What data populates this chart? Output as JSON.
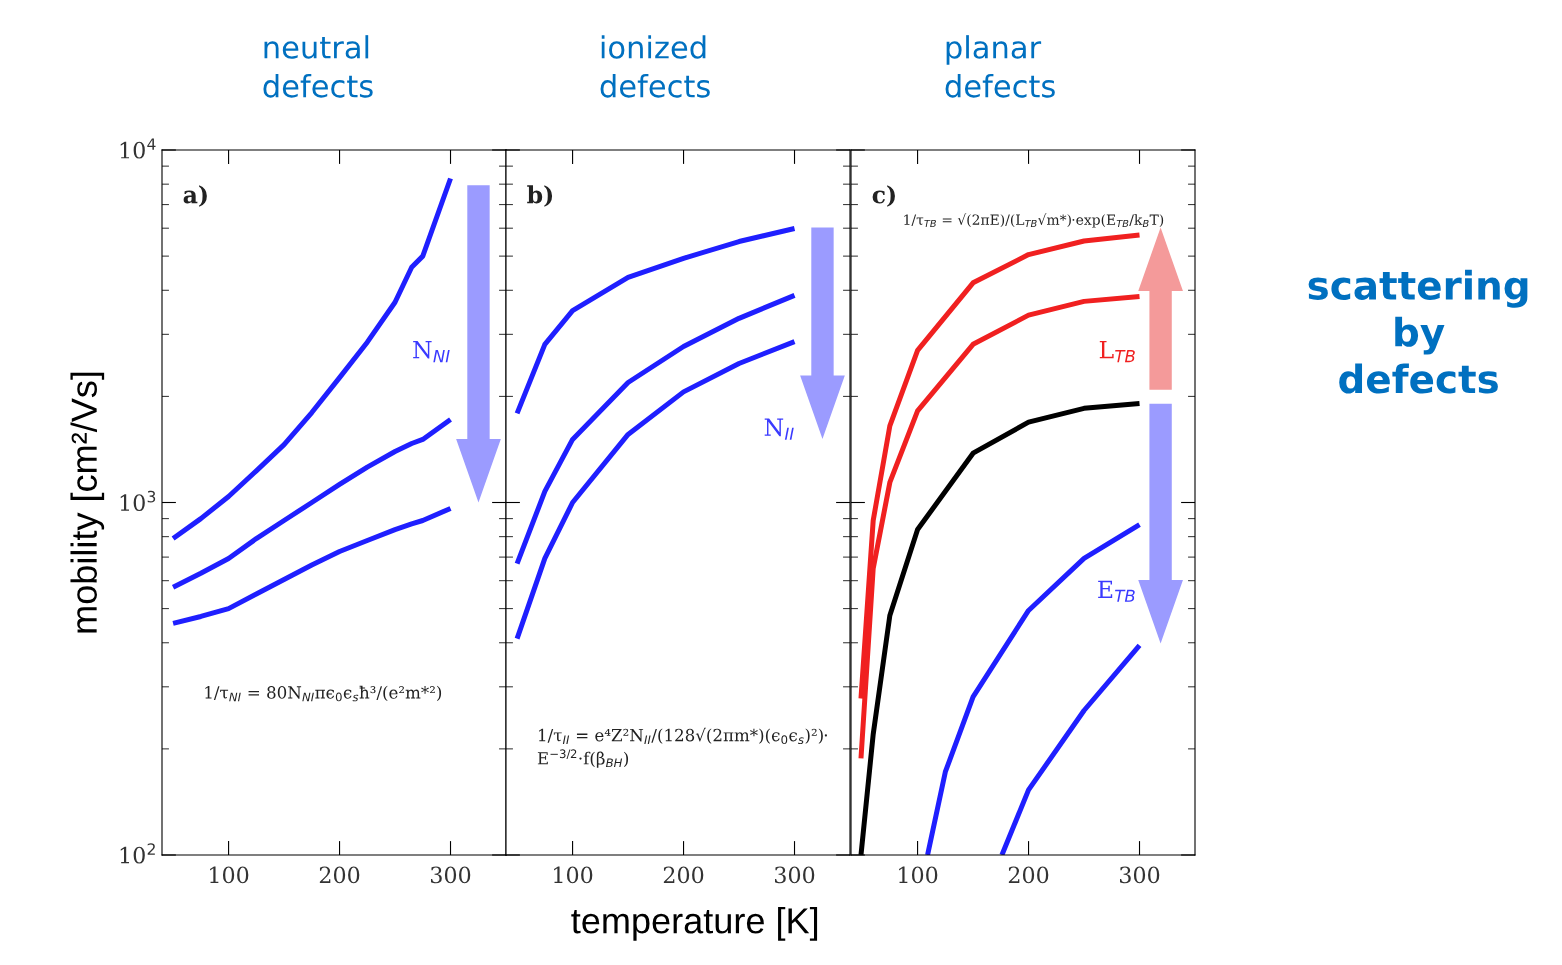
{
  "chart_data": [
    {
      "type": "line",
      "title": "neutral\ndefects",
      "ylabel": "mobility [cm²/Vs]",
      "log": "y",
      "grid": false,
      "legend": false,
      "xlim": [
        40,
        350
      ],
      "xticks": [
        100,
        200,
        300
      ],
      "ylim": [
        100,
        10000
      ],
      "yticks": [
        {
          "value": 100,
          "label": "10$^{2}$"
        },
        {
          "value": 1000,
          "label": "10$^{3}$"
        },
        {
          "value": 10000,
          "label": "10$^{4}$"
        }
      ],
      "x": [
        50,
        75,
        100,
        125,
        150,
        175,
        200,
        225,
        250,
        265,
        275,
        300
      ],
      "series": [
        {
          "color": "#1f1fff",
          "values": [
            790,
            900,
            1040,
            1230,
            1460,
            1800,
            2260,
            2850,
            3700,
            4650,
            5000,
            8300
          ]
        },
        {
          "color": "#1f1fff",
          "values": [
            575,
            630,
            694,
            790,
            889,
            1000,
            1125,
            1260,
            1395,
            1470,
            1510,
            1720
          ]
        },
        {
          "color": "#1f1fff",
          "values": [
            454,
            475,
            500,
            550,
            605,
            665,
            726,
            780,
            838,
            870,
            889,
            962
          ]
        }
      ],
      "annotations": [
        "a)",
        "N$_{NI}$",
        "1/τ$_{NI}$ = 80N$_{NI}$πϵ$_{0}$ϵ$_{s}$ħ³/(e²m*²)"
      ]
    },
    {
      "type": "line",
      "title": "ionized\ndefects",
      "xlabel": "temperature [K]",
      "log": "y",
      "grid": false,
      "legend": false,
      "tick_labels": "x",
      "xlim": [
        40,
        350
      ],
      "xticks": [
        100,
        200,
        300
      ],
      "ylim": [
        100,
        10000
      ],
      "yticks": [
        {
          "value": 100,
          "label": null
        },
        {
          "value": 1000,
          "label": null
        },
        {
          "value": 10000,
          "label": null
        }
      ],
      "x": [
        50,
        75,
        100,
        150,
        200,
        250,
        300
      ],
      "series": [
        {
          "color": "#1f1fff",
          "values": [
            1790,
            2810,
            3500,
            4350,
            4930,
            5500,
            5990
          ]
        },
        {
          "color": "#1f1fff",
          "values": [
            671,
            1075,
            1510,
            2190,
            2770,
            3330,
            3870
          ]
        },
        {
          "color": "#1f1fff",
          "values": [
            411,
            694,
            1000,
            1560,
            2060,
            2480,
            2860
          ]
        }
      ],
      "annotations": [
        "b)",
        "N$_{II}$",
        "1/τ$_{II}$ = e⁴Z²N$_{II}$/(128√(2πm*)(ϵ$_{0}$ϵ$_{s}$)²)·\nE$^{−3/2}$·f(β$_{BH}$)"
      ]
    },
    {
      "type": "line",
      "title": "planar\ndefects",
      "log": "y",
      "grid": false,
      "legend": false,
      "tick_labels": "x",
      "xlim": [
        40,
        350
      ],
      "xticks": [
        100,
        200,
        300
      ],
      "ylim": [
        100,
        10000
      ],
      "yticks": [
        {
          "value": 100,
          "label": null
        },
        {
          "value": 1000,
          "label": null
        },
        {
          "value": 10000,
          "label": null
        }
      ],
      "series": [
        {
          "color": "#f02020",
          "x": [
            49,
            60,
            75,
            100,
            150,
            200,
            250,
            300
          ],
          "values": [
            278,
            889,
            1650,
            2700,
            4200,
            5050,
            5520,
            5740
          ]
        },
        {
          "color": "#f02020",
          "x": [
            49,
            60,
            75,
            100,
            150,
            200,
            250,
            300
          ],
          "values": [
            188,
            650,
            1140,
            1820,
            2810,
            3400,
            3720,
            3840
          ]
        },
        {
          "color": "#000000",
          "x": [
            49,
            60,
            75,
            100,
            150,
            200,
            250,
            300
          ],
          "values": [
            100,
            220,
            478,
            838,
            1380,
            1690,
            1850,
            1910
          ]
        },
        {
          "color": "#1f1fff",
          "x": [
            109,
            125,
            150,
            200,
            250,
            300
          ],
          "values": [
            100,
            172,
            281,
            494,
            694,
            866
          ]
        },
        {
          "color": "#1f1fff",
          "x": [
            176,
            200,
            250,
            300
          ],
          "values": [
            100,
            153,
            257,
            393
          ]
        }
      ],
      "annotations": [
        "c)",
        "1/τ$_{TB}$ = √(2πE)/(L$_{TB}$√m*)·exp(E$_{TB}$/k$_{B}$T)",
        "L$_{TB}$",
        "E$_{TB}$",
        "scattering\nby\ndefects"
      ]
    }
  ]
}
